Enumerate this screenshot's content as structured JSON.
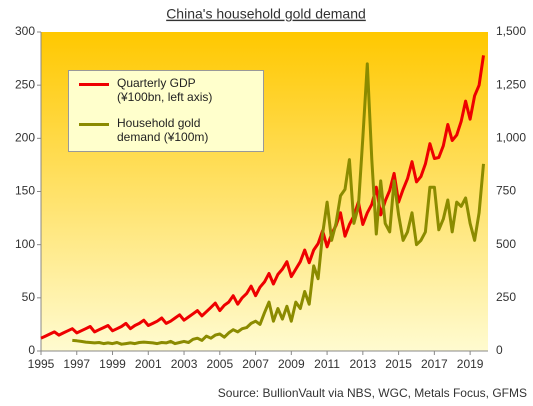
{
  "chart_data": {
    "type": "line",
    "title": "China's household  gold demand",
    "source": "Source: BullionVault via NBS, WGC, Metals Focus, GFMS",
    "x": [
      1995,
      1995.25,
      1995.5,
      1995.75,
      1996,
      1996.25,
      1996.5,
      1996.75,
      1997,
      1997.25,
      1997.5,
      1997.75,
      1998,
      1998.25,
      1998.5,
      1998.75,
      1999,
      1999.25,
      1999.5,
      1999.75,
      2000,
      2000.25,
      2000.5,
      2000.75,
      2001,
      2001.25,
      2001.5,
      2001.75,
      2002,
      2002.25,
      2002.5,
      2002.75,
      2003,
      2003.25,
      2003.5,
      2003.75,
      2004,
      2004.25,
      2004.5,
      2004.75,
      2005,
      2005.25,
      2005.5,
      2005.75,
      2006,
      2006.25,
      2006.5,
      2006.75,
      2007,
      2007.25,
      2007.5,
      2007.75,
      2008,
      2008.25,
      2008.5,
      2008.75,
      2009,
      2009.25,
      2009.5,
      2009.75,
      2010,
      2010.25,
      2010.5,
      2010.75,
      2011,
      2011.25,
      2011.5,
      2011.75,
      2012,
      2012.25,
      2012.5,
      2012.75,
      2013,
      2013.25,
      2013.5,
      2013.75,
      2014,
      2014.25,
      2014.5,
      2014.75,
      2015,
      2015.25,
      2015.5,
      2015.75,
      2016,
      2016.25,
      2016.5,
      2016.75,
      2017,
      2017.25,
      2017.5,
      2017.75,
      2018,
      2018.25,
      2018.5,
      2018.75,
      2019,
      2019.25,
      2019.5,
      2019.75
    ],
    "series": [
      {
        "name": "Quarterly GDP (¥100bn, left axis)",
        "color": "#ee0000",
        "axis": "y",
        "values": [
          12,
          14,
          16,
          18,
          15,
          17,
          19,
          21,
          17,
          19,
          21,
          23,
          18,
          20,
          22,
          24,
          19,
          21,
          23,
          26,
          21,
          24,
          26,
          29,
          24,
          26,
          28,
          31,
          26,
          28,
          31,
          34,
          29,
          32,
          35,
          38,
          33,
          37,
          41,
          45,
          38,
          43,
          46,
          52,
          44,
          50,
          54,
          61,
          52,
          60,
          65,
          73,
          63,
          72,
          77,
          84,
          70,
          77,
          84,
          95,
          83,
          95,
          101,
          113,
          98,
          110,
          118,
          130,
          108,
          119,
          127,
          140,
          119,
          130,
          138,
          154,
          128,
          141,
          151,
          167,
          140,
          152,
          162,
          178,
          159,
          164,
          176,
          195,
          181,
          182,
          193,
          213,
          198,
          203,
          216,
          235,
          218,
          240,
          250,
          278
        ]
      },
      {
        "name": "Household gold demand (¥100m)",
        "color": "#8b8b00",
        "axis": "y2",
        "values": [
          null,
          null,
          null,
          null,
          null,
          null,
          null,
          50,
          48,
          45,
          42,
          40,
          38,
          40,
          35,
          38,
          35,
          40,
          32,
          35,
          38,
          35,
          40,
          42,
          40,
          38,
          35,
          40,
          38,
          45,
          35,
          40,
          45,
          40,
          55,
          60,
          50,
          70,
          60,
          75,
          80,
          65,
          85,
          100,
          90,
          105,
          110,
          130,
          140,
          125,
          180,
          230,
          140,
          200,
          150,
          210,
          140,
          230,
          200,
          280,
          220,
          400,
          340,
          550,
          700,
          520,
          600,
          730,
          760,
          900,
          600,
          680,
          1000,
          1350,
          900,
          550,
          800,
          600,
          560,
          800,
          640,
          520,
          560,
          650,
          500,
          520,
          560,
          770,
          770,
          570,
          620,
          710,
          560,
          700,
          680,
          720,
          600,
          520,
          650,
          880
        ]
      }
    ],
    "xlim": [
      1995,
      2020
    ],
    "xticks": [
      1995,
      1997,
      1999,
      2001,
      2003,
      2005,
      2007,
      2009,
      2011,
      2013,
      2015,
      2017,
      2019
    ],
    "ylim": [
      0,
      300
    ],
    "yticks": [
      0,
      50,
      100,
      150,
      200,
      250,
      300
    ],
    "y2lim": [
      0,
      1500
    ],
    "y2ticks": [
      0,
      250,
      500,
      750,
      {
        "value": 1000,
        "label": "1,000"
      },
      {
        "value": 1250,
        "label": "1,250"
      },
      {
        "value": 1500,
        "label": "1,500"
      }
    ],
    "grid": false
  }
}
